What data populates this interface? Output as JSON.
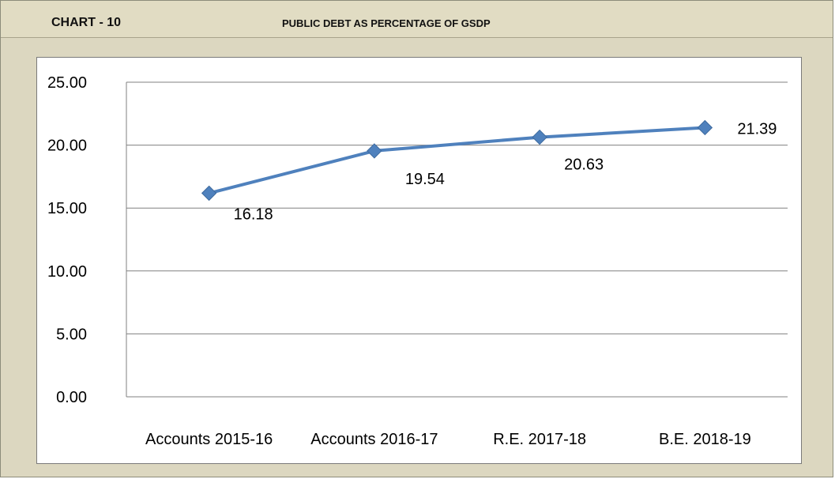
{
  "header": {
    "chart_label": "CHART - 10",
    "title": "PUBLIC DEBT AS PERCENTAGE OF GSDP"
  },
  "chart_data": {
    "type": "line",
    "title": "PUBLIC DEBT AS PERCENTAGE OF GSDP",
    "categories": [
      "Accounts 2015-16",
      "Accounts 2016-17",
      "R.E. 2017-18",
      "B.E. 2018-19"
    ],
    "series": [
      {
        "values": [
          16.18,
          19.54,
          20.63,
          21.39
        ],
        "data_labels": [
          "16.18",
          "19.54",
          "20.63",
          "21.39"
        ],
        "color": "#4f81bd"
      }
    ],
    "yticks": [
      "0.00",
      "5.00",
      "10.00",
      "15.00",
      "20.00",
      "25.00"
    ],
    "ylim": [
      0,
      25
    ],
    "grid": true,
    "legend": "none"
  },
  "colors": {
    "frame_background": "#dcd7c0",
    "plot_background": "#ffffff",
    "line": "#4f81bd",
    "gridline": "#808080"
  }
}
